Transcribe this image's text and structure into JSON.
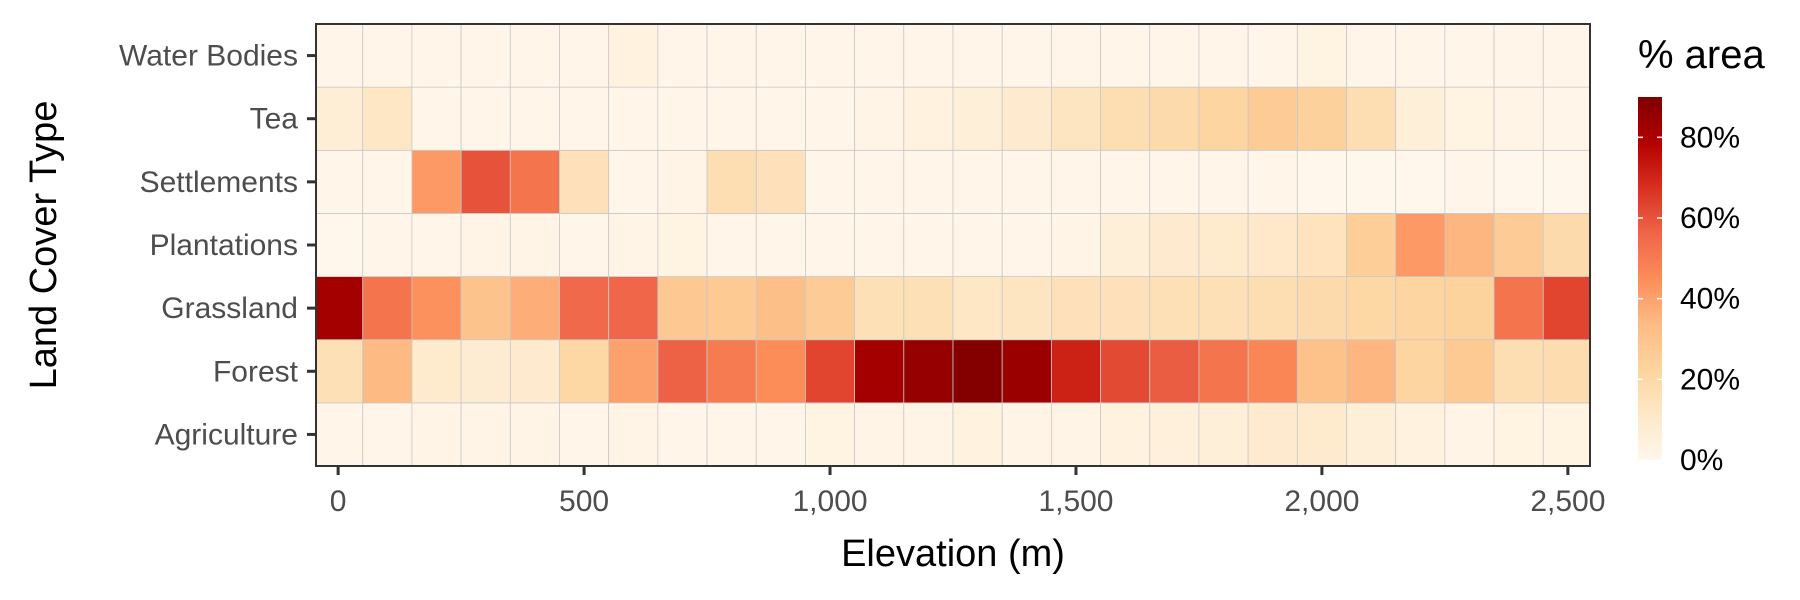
{
  "chart_data": {
    "type": "heatmap",
    "xlabel": "Elevation (m)",
    "ylabel": "Land Cover Type",
    "x_ticks": [
      {
        "value": 0,
        "label": "0"
      },
      {
        "value": 500,
        "label": "500"
      },
      {
        "value": 1000,
        "label": "1,000"
      },
      {
        "value": 1500,
        "label": "1,500"
      },
      {
        "value": 2000,
        "label": "2,000"
      },
      {
        "value": 2500,
        "label": "2,500"
      }
    ],
    "xlim": [
      -45,
      2545
    ],
    "x_bin_width": 100,
    "x": [
      0,
      100,
      200,
      300,
      400,
      500,
      600,
      700,
      800,
      900,
      1000,
      1100,
      1200,
      1300,
      1400,
      1500,
      1600,
      1700,
      1800,
      1900,
      2000,
      2100,
      2200,
      2300,
      2400,
      2500
    ],
    "categories": [
      "Agriculture",
      "Forest",
      "Grassland",
      "Plantations",
      "Settlements",
      "Tea",
      "Water Bodies"
    ],
    "values": {
      "Water Bodies": [
        1,
        1,
        1,
        1,
        1,
        1,
        4,
        1,
        1,
        1,
        1,
        1,
        1,
        1,
        1,
        1,
        1,
        1,
        1,
        1,
        3,
        1,
        1,
        1,
        1,
        1
      ],
      "Tea": [
        7,
        12,
        1,
        1,
        1,
        1,
        1,
        1,
        1,
        1,
        1,
        2,
        4,
        6,
        9,
        13,
        17,
        19,
        22,
        26,
        24,
        17,
        6,
        3,
        2,
        1
      ],
      "Settlements": [
        1,
        1,
        42,
        60,
        52,
        15,
        1,
        2,
        17,
        15,
        1,
        1,
        1,
        1,
        1,
        1,
        1,
        1,
        1,
        1,
        0,
        0,
        0,
        1,
        0,
        0
      ],
      "Plantations": [
        0,
        1,
        1,
        2,
        2,
        1,
        2,
        3,
        1,
        1,
        1,
        1,
        1,
        1,
        1,
        2,
        6,
        9,
        10,
        11,
        14,
        25,
        42,
        35,
        26,
        19
      ],
      "Grassland": [
        82,
        52,
        44,
        30,
        37,
        55,
        56,
        28,
        27,
        32,
        26,
        16,
        16,
        12,
        13,
        15,
        15,
        16,
        16,
        17,
        19,
        21,
        22,
        23,
        52,
        63
      ],
      "Forest": [
        16,
        34,
        10,
        8,
        9,
        21,
        40,
        57,
        50,
        45,
        63,
        82,
        85,
        89,
        84,
        71,
        62,
        58,
        52,
        47,
        31,
        35,
        22,
        27,
        17,
        18
      ],
      "Agriculture": [
        1,
        1,
        2,
        2,
        2,
        1,
        2,
        1,
        1,
        1,
        3,
        2,
        2,
        4,
        2,
        2,
        4,
        5,
        6,
        9,
        10,
        6,
        4,
        2,
        3,
        3
      ]
    },
    "colorbar": {
      "title": "% area",
      "min": 0,
      "max": 90,
      "ticks": [
        {
          "value": 0,
          "label": "0%"
        },
        {
          "value": 20,
          "label": "20%"
        },
        {
          "value": 40,
          "label": "40%"
        },
        {
          "value": 60,
          "label": "60%"
        },
        {
          "value": 80,
          "label": "80%"
        }
      ],
      "colors": [
        "#fff7ec",
        "#fee8c8",
        "#fdd49e",
        "#fdbb84",
        "#fc8d59",
        "#ef6548",
        "#d7301f",
        "#b30000",
        "#7f0000"
      ]
    },
    "grid": false,
    "legend_position": "right"
  }
}
